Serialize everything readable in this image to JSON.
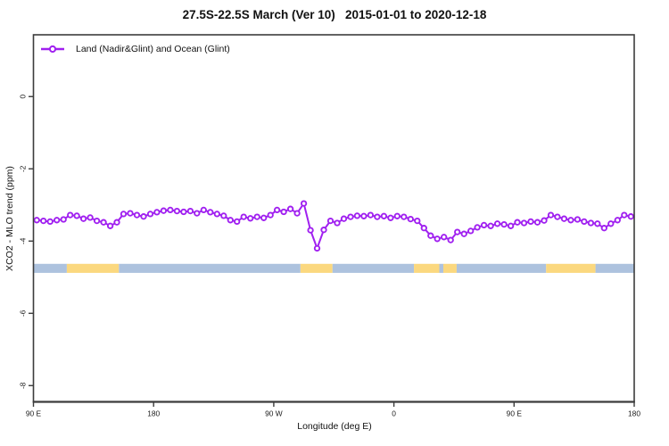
{
  "chart": {
    "title": "27.5S-22.5S March (Ver 10)   2015-01-01 to 2020-12-18",
    "legend_label": "Land (Nadir&Glint) and Ocean (Glint)",
    "xlabel": "Longitude (deg E)",
    "ylabel": "XCO2 - MLO trend (ppm)"
  },
  "chart_data": {
    "type": "line",
    "title": "27.5S-22.5S March (Ver 10)   2015-01-01 to 2020-12-18",
    "xlabel": "Longitude (deg E)",
    "ylabel": "XCO2 - MLO trend (ppm)",
    "legend": [
      "Land (Nadir&Glint) and Ocean (Glint)"
    ],
    "legend_position": "top-left",
    "grid": false,
    "xlim": [
      90,
      540
    ],
    "ylim": [
      -8.45,
      1.71
    ],
    "x_ticks": {
      "values": [
        90,
        180,
        270,
        360,
        450,
        540
      ],
      "labels": [
        "90 E",
        "180",
        "90 W",
        "0",
        "90 E",
        "180"
      ]
    },
    "y_ticks": {
      "values": [
        0,
        -2,
        -4,
        -6,
        -8
      ],
      "labels": [
        "0",
        "-2",
        "-4",
        "-6",
        "-8"
      ]
    },
    "series": [
      {
        "name": "Land (Nadir&Glint) and Ocean (Glint)",
        "marker": "open-circle",
        "x_start_deg": 92.5,
        "x_step_deg": 5,
        "values": [
          -3.42,
          -3.44,
          -3.46,
          -3.42,
          -3.4,
          -3.28,
          -3.3,
          -3.38,
          -3.35,
          -3.44,
          -3.48,
          -3.58,
          -3.48,
          -3.25,
          -3.23,
          -3.28,
          -3.32,
          -3.25,
          -3.2,
          -3.16,
          -3.14,
          -3.17,
          -3.19,
          -3.17,
          -3.23,
          -3.14,
          -3.2,
          -3.25,
          -3.3,
          -3.42,
          -3.46,
          -3.33,
          -3.37,
          -3.33,
          -3.36,
          -3.28,
          -3.14,
          -3.19,
          -3.11,
          -3.23,
          -2.96,
          -3.7,
          -4.2,
          -3.69,
          -3.44,
          -3.5,
          -3.38,
          -3.33,
          -3.3,
          -3.31,
          -3.28,
          -3.33,
          -3.31,
          -3.36,
          -3.31,
          -3.33,
          -3.39,
          -3.44,
          -3.64,
          -3.85,
          -3.94,
          -3.89,
          -3.97,
          -3.75,
          -3.8,
          -3.72,
          -3.62,
          -3.56,
          -3.58,
          -3.52,
          -3.54,
          -3.58,
          -3.48,
          -3.5,
          -3.46,
          -3.48,
          -3.43,
          -3.28,
          -3.33,
          -3.38,
          -3.42,
          -3.4,
          -3.46,
          -3.5,
          -3.52,
          -3.64,
          -3.52,
          -3.42,
          -3.28,
          -3.32
        ]
      }
    ],
    "surface_band": {
      "description": "land(yellow)/ocean(blue) strip",
      "y_range": [
        -4.63,
        -4.88
      ],
      "segments": [
        {
          "from": 90,
          "to": 115,
          "type": "ocean"
        },
        {
          "from": 115,
          "to": 154,
          "type": "land"
        },
        {
          "from": 154,
          "to": 290,
          "type": "ocean"
        },
        {
          "from": 290,
          "to": 314,
          "type": "land"
        },
        {
          "from": 314,
          "to": 375,
          "type": "ocean"
        },
        {
          "from": 375,
          "to": 394,
          "type": "land"
        },
        {
          "from": 394,
          "to": 397,
          "type": "ocean"
        },
        {
          "from": 397,
          "to": 407,
          "type": "land"
        },
        {
          "from": 407,
          "to": 474,
          "type": "ocean"
        },
        {
          "from": 474,
          "to": 511,
          "type": "land"
        },
        {
          "from": 511,
          "to": 540,
          "type": "ocean"
        }
      ]
    },
    "colors": {
      "series": "#A020F0",
      "land": "#FBD87F",
      "ocean": "#ADC2DE",
      "frame": "#3C3C3C",
      "text": "#1A1A1A"
    }
  }
}
